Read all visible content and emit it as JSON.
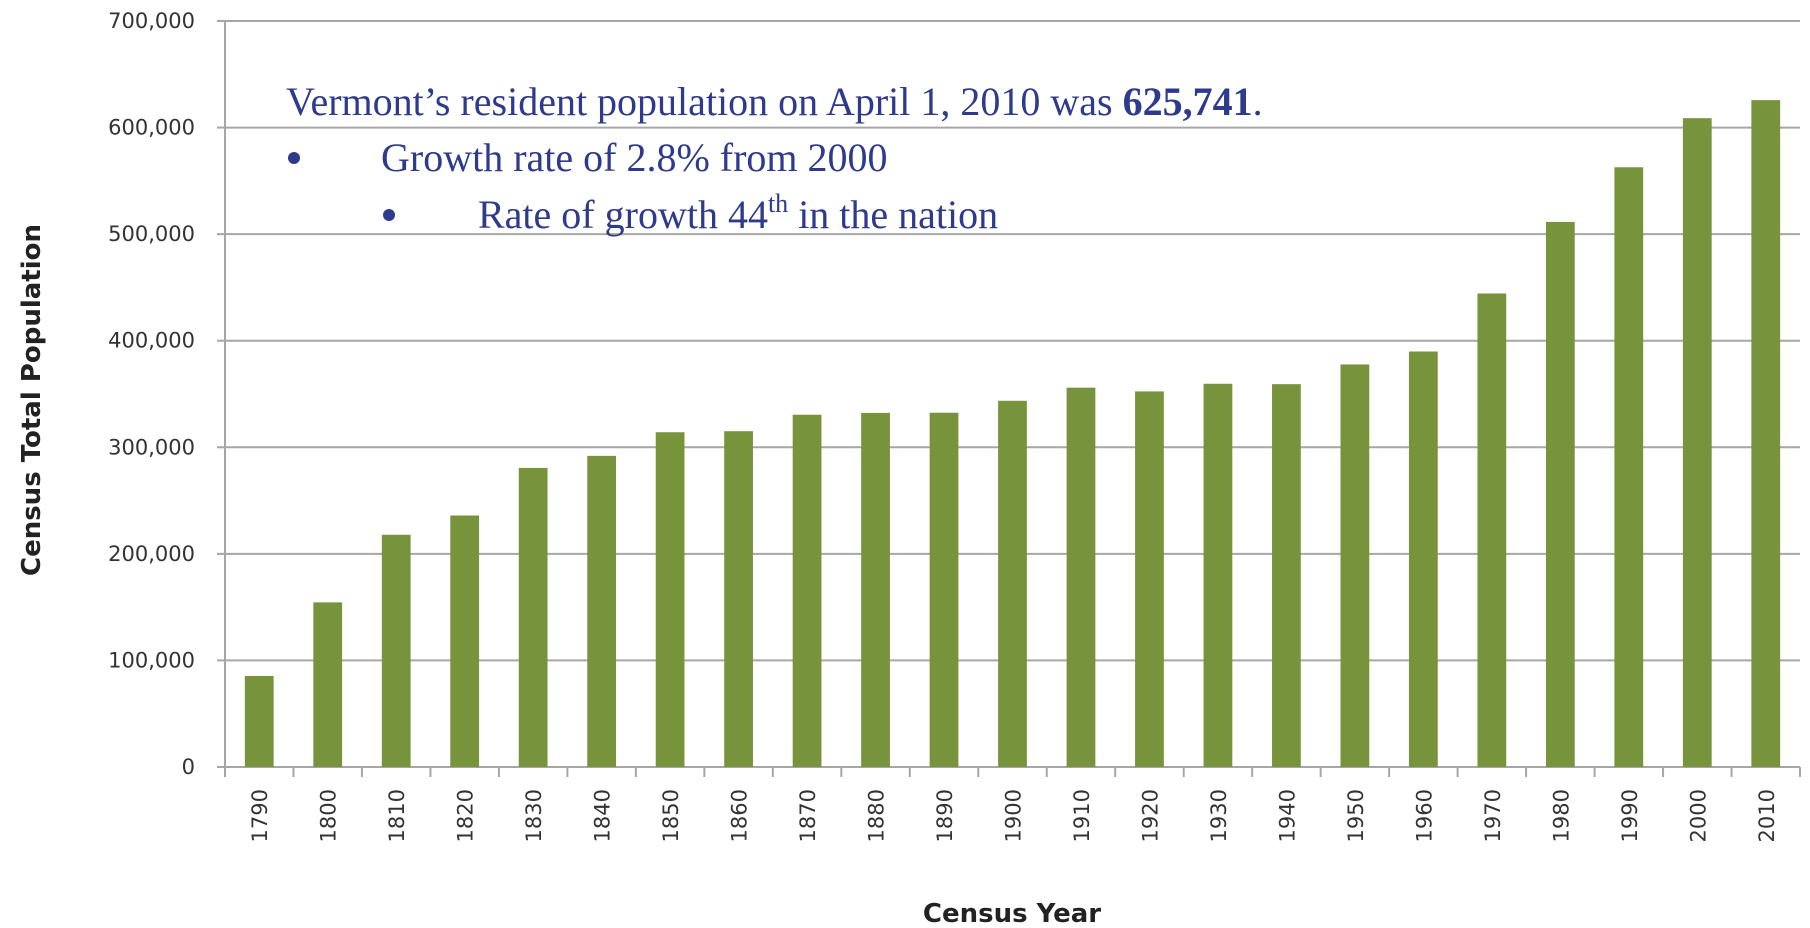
{
  "chart_data": {
    "type": "bar",
    "x_label": "Census Year",
    "y_label": "Census Total Population",
    "categories": [
      "1790",
      "1800",
      "1810",
      "1820",
      "1830",
      "1840",
      "1850",
      "1860",
      "1870",
      "1880",
      "1890",
      "1900",
      "1910",
      "1920",
      "1930",
      "1940",
      "1950",
      "1960",
      "1970",
      "1980",
      "1990",
      "2000",
      "2010"
    ],
    "values": [
      85425,
      154465,
      217895,
      235981,
      280652,
      291948,
      314120,
      315098,
      330551,
      332286,
      332422,
      343641,
      355956,
      352428,
      359611,
      359231,
      377747,
      389881,
      444330,
      511456,
      562758,
      608827,
      625741
    ],
    "color": "#77933c",
    "ylim": [
      0,
      700000
    ],
    "yticks": [
      0,
      {
        "value": 100000,
        "label": "100,000"
      },
      {
        "value": 200000,
        "label": "200,000"
      },
      {
        "value": 300000,
        "label": "300,000"
      },
      {
        "value": 400000,
        "label": "400,000"
      },
      {
        "value": 500000,
        "label": "500,000"
      },
      {
        "value": 600000,
        "label": "600,000"
      },
      {
        "value": 700000,
        "label": "700,000"
      }
    ],
    "grid": true,
    "annotation": {
      "line1": {
        "text": "Vermont’s resident population on April 1, 2010 was ",
        "bold": "625,741",
        "end": "."
      },
      "bullet1": "Growth rate of 2.8% from 2000",
      "bullet2": {
        "text": "Rate of growth 44",
        "sup": "th",
        "end": " in the nation"
      }
    }
  }
}
